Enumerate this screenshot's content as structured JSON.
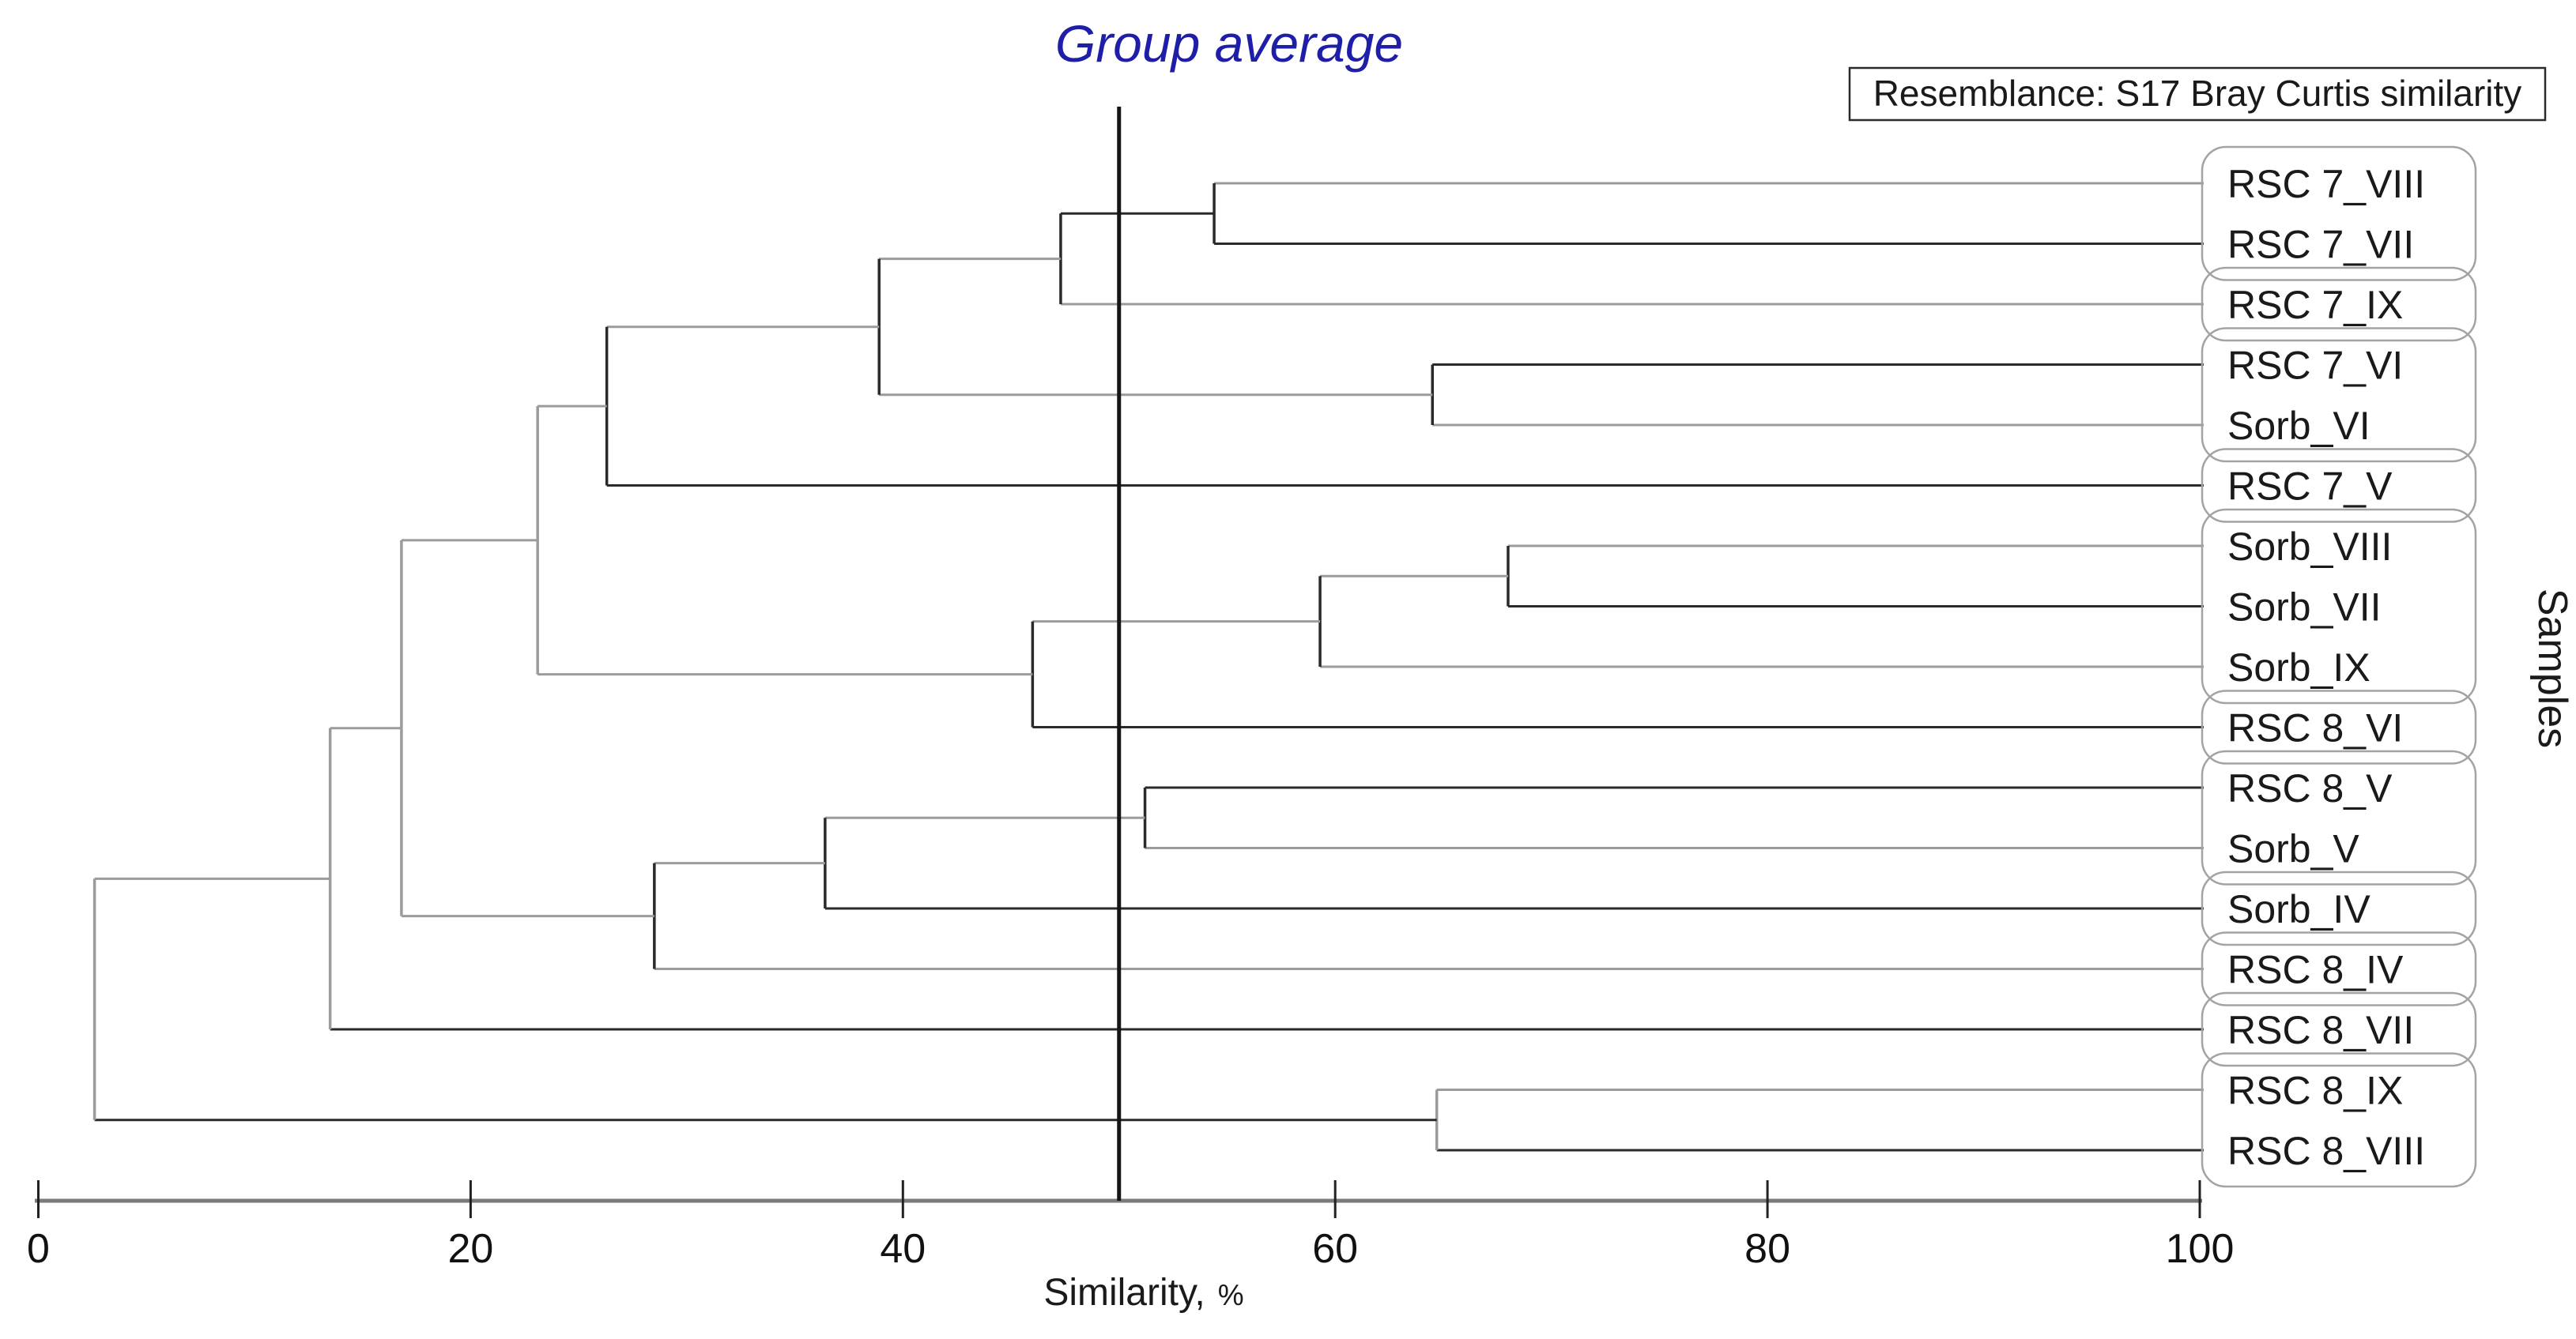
{
  "page": {
    "background": "#ffffff"
  },
  "chart_data": {
    "type": "dendrogram",
    "orientation": "horizontal-leaves-right",
    "title": "Group average",
    "title_color": "#1e1ea8",
    "annotation": "Resemblance: S17 Bray Curtis similarity",
    "right_axis_label": "Samples",
    "axis": {
      "label_main": "Similarity,",
      "label_pct": "%",
      "ticks": [
        0,
        20,
        40,
        60,
        80,
        100
      ],
      "range": [
        0,
        100
      ],
      "line_color": "#7a7a7a",
      "tick_color": "#222222"
    },
    "cutoff": {
      "similarity": 50,
      "color": "#151515"
    },
    "line_colors": {
      "black": "#2a2a2a",
      "gray": "#9b9b9b"
    },
    "group_box_color": "#a3a3a3",
    "leaves": [
      {
        "name": "RSC 7_VIII",
        "color": "gray"
      },
      {
        "name": "RSC 7_VII",
        "color": "black"
      },
      {
        "name": "RSC 7_IX",
        "color": "gray"
      },
      {
        "name": "RSC 7_VI",
        "color": "black"
      },
      {
        "name": "Sorb_VI",
        "color": "gray"
      },
      {
        "name": "RSC 7_V",
        "color": "black"
      },
      {
        "name": "Sorb_VIII",
        "color": "gray"
      },
      {
        "name": "Sorb_VII",
        "color": "black"
      },
      {
        "name": "Sorb_IX",
        "color": "gray"
      },
      {
        "name": "RSC 8_VI",
        "color": "black"
      },
      {
        "name": "RSC 8_V",
        "color": "black"
      },
      {
        "name": "Sorb_V",
        "color": "gray"
      },
      {
        "name": "Sorb_IV",
        "color": "black"
      },
      {
        "name": "RSC 8_IV",
        "color": "gray"
      },
      {
        "name": "RSC 8_VII",
        "color": "black"
      },
      {
        "name": "RSC 8_IX",
        "color": "gray"
      },
      {
        "name": "RSC 8_VIII",
        "color": "black"
      }
    ],
    "merges": [
      {
        "id": "n1",
        "a": "RSC 7_VIII",
        "b": "RSC 7_VII",
        "similarity": 54.4,
        "v": "black",
        "h": "black"
      },
      {
        "id": "n2",
        "a": "n1",
        "b": "RSC 7_IX",
        "similarity": 47.3,
        "v": "black",
        "h": "gray"
      },
      {
        "id": "n3",
        "a": "RSC 7_VI",
        "b": "Sorb_VI",
        "similarity": 64.5,
        "v": "black",
        "h": "gray"
      },
      {
        "id": "n4",
        "a": "n2",
        "b": "n3",
        "similarity": 38.9,
        "v": "black",
        "h": "gray"
      },
      {
        "id": "n5",
        "a": "n4",
        "b": "RSC 7_V",
        "similarity": 26.3,
        "v": "black",
        "h": "gray"
      },
      {
        "id": "n6",
        "a": "Sorb_VIII",
        "b": "Sorb_VII",
        "similarity": 68.0,
        "v": "black",
        "h": "gray"
      },
      {
        "id": "n7",
        "a": "n6",
        "b": "Sorb_IX",
        "similarity": 59.3,
        "v": "black",
        "h": "gray"
      },
      {
        "id": "n8",
        "a": "n7",
        "b": "RSC 8_VI",
        "similarity": 46.0,
        "v": "black",
        "h": "gray"
      },
      {
        "id": "n9",
        "a": "n5",
        "b": "n8",
        "similarity": 23.1,
        "v": "gray",
        "h": "gray"
      },
      {
        "id": "n10",
        "a": "RSC 8_V",
        "b": "Sorb_V",
        "similarity": 51.2,
        "v": "black",
        "h": "gray"
      },
      {
        "id": "n11",
        "a": "n10",
        "b": "Sorb_IV",
        "similarity": 36.4,
        "v": "black",
        "h": "gray"
      },
      {
        "id": "n12",
        "a": "n11",
        "b": "RSC 8_IV",
        "similarity": 28.5,
        "v": "black",
        "h": "gray"
      },
      {
        "id": "n13",
        "a": "n9",
        "b": "n12",
        "similarity": 16.8,
        "v": "gray",
        "h": "gray"
      },
      {
        "id": "n14",
        "a": "n13",
        "b": "RSC 8_VII",
        "similarity": 13.5,
        "v": "gray",
        "h": "gray"
      },
      {
        "id": "n15",
        "a": "RSC 8_IX",
        "b": "RSC 8_VIII",
        "similarity": 64.7,
        "v": "gray",
        "h": "black"
      },
      {
        "id": "root",
        "a": "n14",
        "b": "n15",
        "similarity": 2.6,
        "v": "gray",
        "h": "gray"
      }
    ],
    "groups": [
      [
        "RSC 7_VIII",
        "RSC 7_VII"
      ],
      [
        "RSC 7_IX"
      ],
      [
        "RSC 7_VI",
        "Sorb_VI"
      ],
      [
        "RSC 7_V"
      ],
      [
        "Sorb_VIII",
        "Sorb_VII",
        "Sorb_IX"
      ],
      [
        "RSC 8_VI"
      ],
      [
        "RSC 8_V",
        "Sorb_V"
      ],
      [
        "Sorb_IV"
      ],
      [
        "RSC 8_IV"
      ],
      [
        "RSC 8_VII"
      ],
      [
        "RSC 8_IX",
        "RSC 8_VIII"
      ]
    ]
  }
}
